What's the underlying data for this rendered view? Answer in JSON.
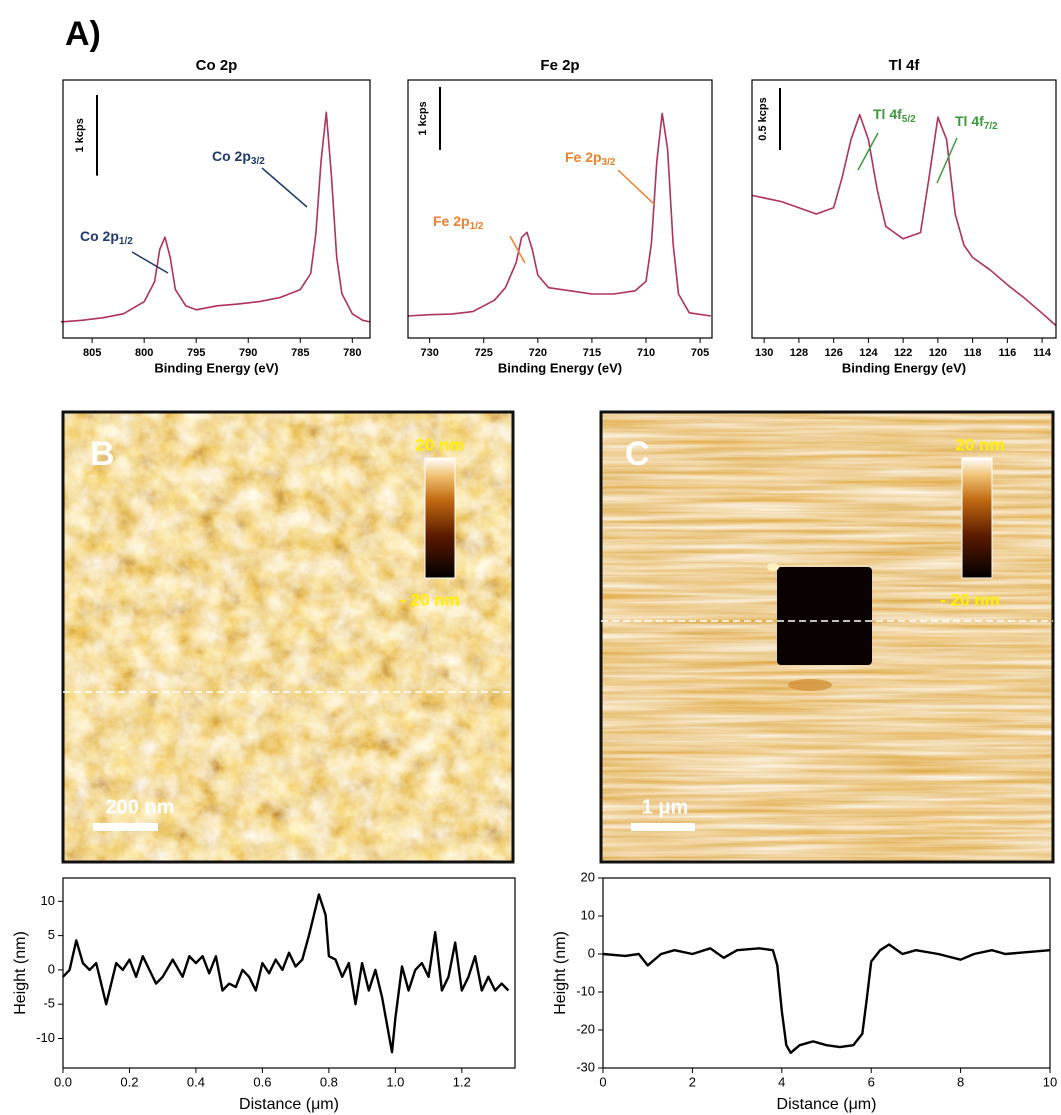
{
  "panel_label": "A)",
  "chart_data": [
    {
      "type": "line",
      "title": "Co 2p",
      "x_label": "Binding Energy (eV)",
      "color": "#b03060",
      "xlim": [
        807.8,
        778.3
      ],
      "ylim": [
        0,
        3.2
      ],
      "xticks": [
        805,
        800,
        795,
        790,
        785,
        780
      ],
      "scale_bar": {
        "value": 1,
        "label": "1 kcps"
      },
      "annotations": [
        {
          "text": "Co 2p",
          "sub": "1/2",
          "color": "#1f3a6e"
        },
        {
          "text": "Co 2p",
          "sub": "3/2",
          "color": "#1f3a6e"
        }
      ],
      "x": [
        808,
        806,
        804,
        802,
        800,
        799,
        798.5,
        798,
        797.5,
        797,
        796,
        795,
        793,
        791,
        789,
        787,
        785,
        784,
        783.5,
        783,
        782.5,
        782,
        781.5,
        781,
        780,
        779,
        778.3
      ],
      "values": [
        0.2,
        0.22,
        0.25,
        0.3,
        0.45,
        0.7,
        1.1,
        1.25,
        1.0,
        0.6,
        0.4,
        0.35,
        0.4,
        0.42,
        0.45,
        0.5,
        0.6,
        0.8,
        1.3,
        2.2,
        2.8,
        2.0,
        1.0,
        0.55,
        0.3,
        0.22,
        0.2
      ]
    },
    {
      "type": "line",
      "title": "Fe 2p",
      "x_label": "Binding Energy (eV)",
      "color": "#b03060",
      "xlim": [
        732,
        703.9
      ],
      "ylim": [
        0,
        4.1
      ],
      "xticks": [
        730,
        725,
        720,
        715,
        710,
        705
      ],
      "scale_bar": {
        "value": 1,
        "label": "1 kcps"
      },
      "annotations": [
        {
          "text": "Fe 2p",
          "sub": "1/2",
          "color": "#f07f2a"
        },
        {
          "text": "Fe 2p",
          "sub": "3/2",
          "color": "#f07f2a"
        }
      ],
      "x": [
        732,
        730,
        728,
        726,
        724,
        723,
        722,
        721.5,
        721,
        720.5,
        720,
        719,
        717,
        715,
        713,
        711,
        710,
        709.5,
        709,
        708.5,
        708,
        707.5,
        707,
        706,
        704
      ],
      "values": [
        0.35,
        0.37,
        0.38,
        0.42,
        0.6,
        0.8,
        1.2,
        1.6,
        1.68,
        1.4,
        1.0,
        0.8,
        0.75,
        0.7,
        0.7,
        0.75,
        0.9,
        1.5,
        2.8,
        3.57,
        3.0,
        1.5,
        0.7,
        0.4,
        0.35
      ]
    },
    {
      "type": "line",
      "title": "Tl 4f",
      "x_label": "Binding Energy (eV)",
      "color": "#b03060",
      "xlim": [
        130.7,
        113.2
      ],
      "ylim": [
        0,
        2.08
      ],
      "xticks": [
        130,
        128,
        126,
        124,
        122,
        120,
        118,
        116,
        114
      ],
      "scale_bar": {
        "value": 0.5,
        "label": "0.5 kcps"
      },
      "annotations": [
        {
          "text": "Tl 4f",
          "sub": "5/2",
          "color": "#3a9a3a"
        },
        {
          "text": "Tl 4f",
          "sub": "7/2",
          "color": "#3a9a3a"
        }
      ],
      "x": [
        130.7,
        129,
        128,
        127,
        126,
        125.5,
        125,
        124.5,
        124,
        123.5,
        123,
        122,
        121,
        120.5,
        120,
        119.5,
        119,
        118.5,
        118,
        117,
        116,
        115,
        114,
        113.2
      ],
      "values": [
        1.15,
        1.1,
        1.05,
        1.0,
        1.05,
        1.3,
        1.6,
        1.8,
        1.6,
        1.2,
        0.9,
        0.8,
        0.85,
        1.3,
        1.78,
        1.6,
        1.0,
        0.75,
        0.65,
        0.55,
        0.43,
        0.32,
        0.2,
        0.1
      ]
    },
    {
      "type": "line",
      "x_label": "Distance (μm)",
      "y_label": "Height (nm)",
      "color": "#000000",
      "xlim": [
        0,
        1.36
      ],
      "ylim": [
        -14.3,
        13.4
      ],
      "xticks": [
        {
          "value": 0,
          "label": "0.0"
        },
        {
          "value": 0.2,
          "label": "0.2"
        },
        {
          "value": 0.4,
          "label": "0.4"
        },
        {
          "value": 0.6,
          "label": "0.6"
        },
        {
          "value": 0.8,
          "label": "0.8"
        },
        {
          "value": 1,
          "label": "1.0"
        },
        {
          "value": 1.2,
          "label": "1.2"
        }
      ],
      "yticks": [
        10,
        5,
        0,
        -5,
        -10
      ],
      "x": [
        0,
        0.02,
        0.04,
        0.06,
        0.08,
        0.1,
        0.13,
        0.16,
        0.18,
        0.2,
        0.22,
        0.24,
        0.26,
        0.28,
        0.3,
        0.33,
        0.36,
        0.38,
        0.4,
        0.42,
        0.44,
        0.46,
        0.48,
        0.5,
        0.52,
        0.54,
        0.56,
        0.58,
        0.6,
        0.62,
        0.64,
        0.66,
        0.68,
        0.7,
        0.72,
        0.74,
        0.77,
        0.79,
        0.8,
        0.82,
        0.84,
        0.86,
        0.88,
        0.9,
        0.92,
        0.94,
        0.96,
        0.99,
        1.0,
        1.02,
        1.04,
        1.06,
        1.08,
        1.1,
        1.12,
        1.14,
        1.16,
        1.18,
        1.2,
        1.22,
        1.24,
        1.26,
        1.28,
        1.3,
        1.32,
        1.34
      ],
      "values": [
        -1,
        0,
        4.3,
        1,
        0,
        1,
        -5,
        1,
        0,
        1.5,
        -1,
        2,
        0,
        -2,
        -1,
        1.5,
        -1,
        2,
        1,
        2,
        -0.5,
        2,
        -3,
        -2,
        -2.5,
        0,
        -1,
        -3,
        1,
        -0.5,
        1.5,
        0,
        2.5,
        0.5,
        1.5,
        5,
        11,
        8,
        2,
        1.5,
        -1,
        1,
        -5,
        1,
        -3,
        0,
        -4,
        -12,
        -7,
        0.5,
        -3,
        0,
        1,
        -1,
        5.5,
        -3,
        -1,
        4,
        -3,
        -1,
        2,
        -3,
        -1,
        -3,
        -2,
        -3
      ]
    },
    {
      "type": "line",
      "x_label": "Distance (μm)",
      "y_label": "Height (nm)",
      "color": "#000000",
      "xlim": [
        0,
        10
      ],
      "ylim": [
        -30,
        20
      ],
      "xticks": [
        0,
        2,
        4,
        6,
        8,
        10
      ],
      "yticks": [
        20,
        10,
        0,
        -10,
        -20,
        -30
      ],
      "x": [
        0,
        0.5,
        0.8,
        1,
        1.3,
        1.6,
        2,
        2.4,
        2.7,
        3,
        3.5,
        3.8,
        3.9,
        4,
        4.1,
        4.2,
        4.4,
        4.7,
        5,
        5.3,
        5.6,
        5.8,
        5.9,
        6,
        6.2,
        6.4,
        6.7,
        7,
        7.5,
        8,
        8.3,
        8.7,
        9,
        9.5,
        10
      ],
      "values": [
        0,
        -0.5,
        0,
        -3,
        0,
        1,
        0,
        1.5,
        -1,
        1,
        1.5,
        1,
        -3,
        -15,
        -24,
        -26,
        -24,
        -23,
        -24,
        -24.5,
        -24,
        -21,
        -12,
        -2,
        1,
        2.5,
        0,
        1,
        0,
        -1.5,
        0,
        1,
        0,
        0.5,
        1
      ]
    }
  ],
  "images": [
    {
      "label": "B",
      "scale_bar": "200 nm",
      "colorbar_max": "20 nm",
      "colorbar_min": "- 20 nm"
    },
    {
      "label": "C",
      "scale_bar": "1 μm",
      "colorbar_max": "20 nm",
      "colorbar_min": "- 20 nm"
    }
  ]
}
